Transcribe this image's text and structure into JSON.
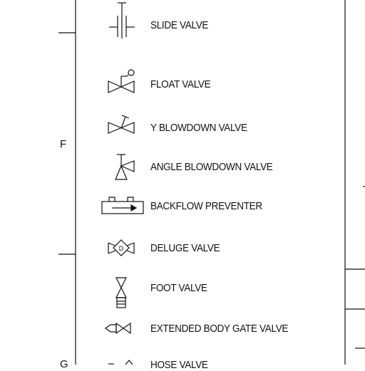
{
  "zone_labels": {
    "zone_f": "F",
    "zone_g": "G"
  },
  "legend": [
    {
      "label": "SLIDE VALVE",
      "icon": "slide-valve-icon"
    },
    {
      "label": "FLOAT VALVE",
      "icon": "float-valve-icon"
    },
    {
      "label": "Y BLOWDOWN VALVE",
      "icon": "y-blowdown-valve-icon"
    },
    {
      "label": "ANGLE BLOWDOWN VALVE",
      "icon": "angle-blowdown-valve-icon"
    },
    {
      "label": "BACKFLOW PREVENTER",
      "icon": "backflow-preventer-icon"
    },
    {
      "label": "DELUGE VALVE",
      "icon": "deluge-valve-icon",
      "icon_text": "D"
    },
    {
      "label": "FOOT VALVE",
      "icon": "foot-valve-icon"
    },
    {
      "label": "EXTENDED BODY GATE VALVE",
      "icon": "extended-body-gate-valve-icon"
    },
    {
      "label": "HOSE VALVE",
      "icon": "hose-valve-icon"
    }
  ]
}
